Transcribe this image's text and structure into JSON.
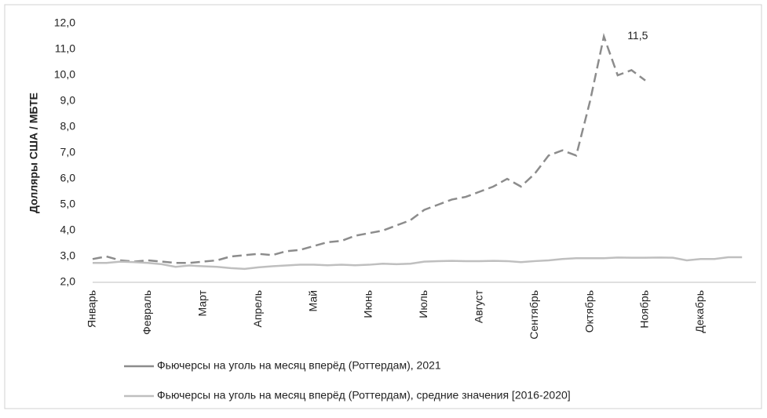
{
  "chart_data": {
    "type": "line",
    "y_label": "Долляры США / МБТЕ",
    "categories": [
      "Январь",
      null,
      null,
      null,
      "Февраль",
      null,
      null,
      null,
      "Март",
      null,
      null,
      null,
      "Апрель",
      null,
      null,
      null,
      "Май",
      null,
      null,
      null,
      "Июнь",
      null,
      null,
      null,
      "Июль",
      null,
      null,
      null,
      "Август",
      null,
      null,
      null,
      "Сентябрь",
      null,
      null,
      null,
      "Октябрь",
      null,
      null,
      null,
      "Ноябрь",
      null,
      null,
      null,
      "Декабрь",
      null,
      null,
      null
    ],
    "series": [
      {
        "name": "Фьючерсы на уголь на месяц вперёд (Роттердам), 2021",
        "color": "#8c8c8c",
        "dashed": true,
        "values": [
          2.9,
          3.0,
          2.85,
          2.8,
          2.85,
          2.8,
          2.75,
          2.75,
          2.8,
          2.85,
          3.0,
          3.05,
          3.1,
          3.05,
          3.2,
          3.25,
          3.4,
          3.55,
          3.6,
          3.8,
          3.9,
          4.0,
          4.2,
          4.4,
          4.8,
          5.0,
          5.2,
          5.3,
          5.5,
          5.7,
          6.0,
          5.7,
          6.2,
          6.9,
          7.1,
          6.9,
          9.0,
          11.5,
          10.0,
          10.2,
          9.8,
          null,
          null,
          null,
          null,
          null,
          null,
          null
        ]
      },
      {
        "name": "Фьючерсы на уголь на месяц вперёд (Роттердам), средние значения [2016-2020]",
        "color": "#bfbfbf",
        "dashed": false,
        "values": [
          2.75,
          2.75,
          2.8,
          2.78,
          2.75,
          2.7,
          2.6,
          2.65,
          2.62,
          2.6,
          2.55,
          2.52,
          2.58,
          2.62,
          2.65,
          2.68,
          2.68,
          2.66,
          2.68,
          2.66,
          2.68,
          2.72,
          2.7,
          2.72,
          2.8,
          2.82,
          2.83,
          2.82,
          2.82,
          2.83,
          2.82,
          2.78,
          2.82,
          2.85,
          2.9,
          2.93,
          2.93,
          2.93,
          2.96,
          2.95,
          2.95,
          2.96,
          2.95,
          2.85,
          2.9,
          2.9,
          2.97,
          2.97
        ]
      }
    ],
    "annotation": "11,5",
    "ylim": [
      2,
      12
    ],
    "yticks": [
      {
        "value": 2,
        "label": "2,0"
      },
      {
        "value": 3,
        "label": "3,0"
      },
      {
        "value": 4,
        "label": "4,0"
      },
      {
        "value": 5,
        "label": "5,0"
      },
      {
        "value": 6,
        "label": "6,0"
      },
      {
        "value": 7,
        "label": "7,0"
      },
      {
        "value": 8,
        "label": "8,0"
      },
      {
        "value": 9,
        "label": "9,0"
      },
      {
        "value": 10,
        "label": "10,0"
      },
      {
        "value": 11,
        "label": "11,0"
      },
      {
        "value": 12,
        "label": "12,0"
      }
    ],
    "grid": false,
    "legend": "bottom"
  }
}
